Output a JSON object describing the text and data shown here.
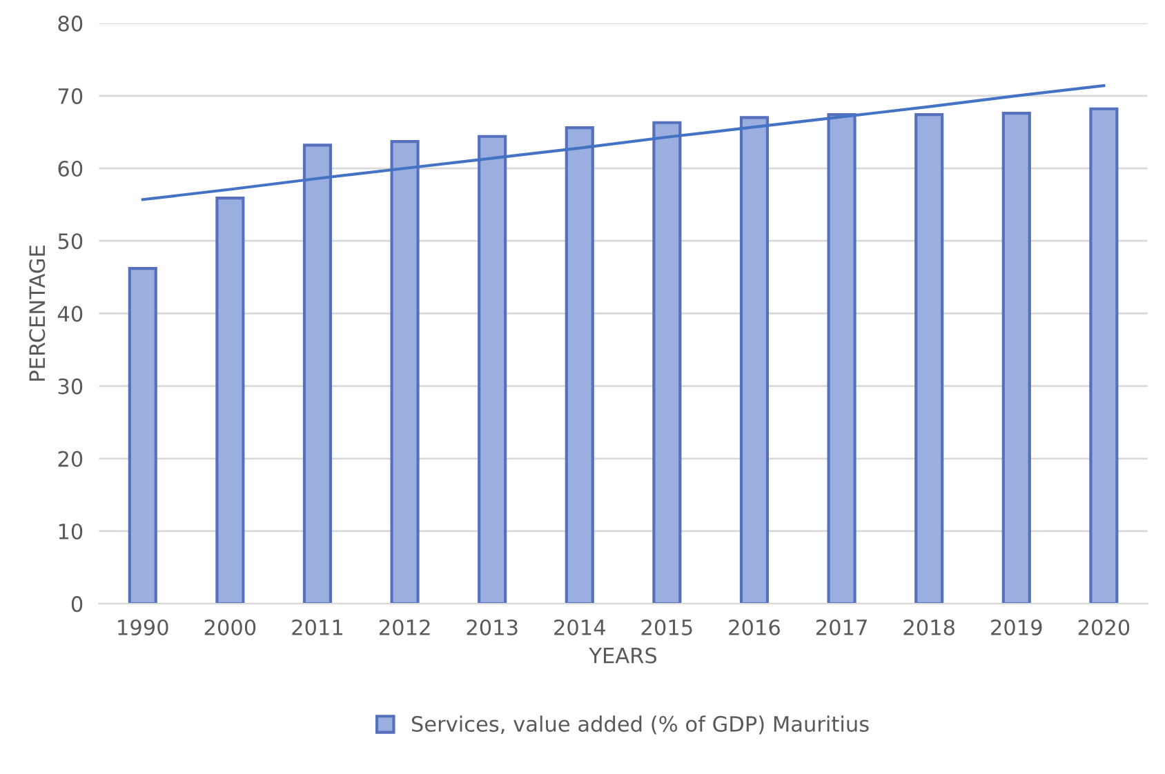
{
  "chart_data": {
    "type": "bar",
    "xlabel": "YEARS",
    "ylabel": "PERCENTAGE",
    "categories": [
      "1990",
      "2000",
      "2011",
      "2012",
      "2013",
      "2014",
      "2015",
      "2016",
      "2017",
      "2018",
      "2019",
      "2020"
    ],
    "series": [
      {
        "name": "Services, value added (% of GDP) Mauritius",
        "color": "#9aaedf",
        "values": [
          46.2,
          55.9,
          63.2,
          63.7,
          64.4,
          65.6,
          66.3,
          67.0,
          67.4,
          67.4,
          67.6,
          68.2
        ]
      },
      {
        "type": "line",
        "color": "#4472c4",
        "values": [
          55.7,
          57.1,
          58.6,
          60.0,
          61.4,
          62.8,
          64.3,
          65.7,
          67.1,
          68.5,
          70.0,
          71.4
        ]
      }
    ],
    "ylim": [
      0,
      80
    ],
    "yticks": [
      0,
      10,
      20,
      30,
      40,
      50,
      60,
      70,
      80
    ],
    "grid": "y",
    "legend": "bottom"
  }
}
